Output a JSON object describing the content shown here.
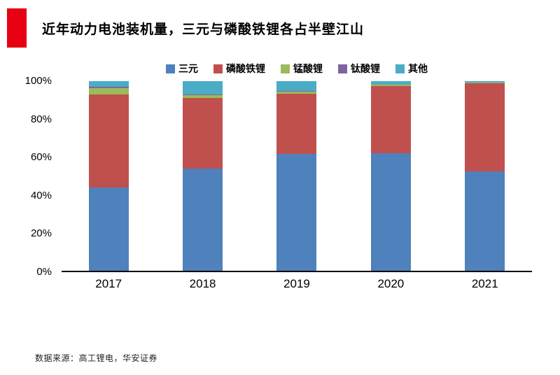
{
  "header": {
    "title": "近年动力电池装机量，三元与磷酸铁锂各占半壁江山",
    "accent_color": "#e60012"
  },
  "chart_data": {
    "type": "bar",
    "stacked": true,
    "percent_stacked": true,
    "title": "近年动力电池装机量，三元与磷酸铁锂各占半壁江山",
    "categories": [
      "2017",
      "2018",
      "2019",
      "2020",
      "2021"
    ],
    "series": [
      {
        "name": "三元",
        "color": "#4F81BD",
        "values": [
          44.0,
          54.0,
          61.5,
          62.0,
          52.5
        ]
      },
      {
        "name": "磷酸铁锂",
        "color": "#C0504D",
        "values": [
          49.0,
          37.0,
          32.0,
          35.5,
          46.3
        ]
      },
      {
        "name": "锰酸锂",
        "color": "#9BBB59",
        "values": [
          3.5,
          1.5,
          1.0,
          0.5,
          0.4
        ]
      },
      {
        "name": "钛酸锂",
        "color": "#8064A2",
        "values": [
          0.5,
          0.5,
          0.5,
          0.2,
          0.1
        ]
      },
      {
        "name": "其他",
        "color": "#4BACC6",
        "values": [
          3.0,
          7.0,
          5.0,
          1.8,
          0.7
        ]
      }
    ],
    "xlabel": "",
    "ylabel": "",
    "ylim": [
      0,
      100
    ],
    "y_ticks": [
      0,
      20,
      40,
      60,
      80,
      100
    ],
    "y_tick_labels": [
      "0%",
      "20%",
      "40%",
      "60%",
      "80%",
      "100%"
    ],
    "legend_position": "top",
    "grid": false
  },
  "footer": {
    "source": "数据来源：高工锂电，华安证券"
  }
}
